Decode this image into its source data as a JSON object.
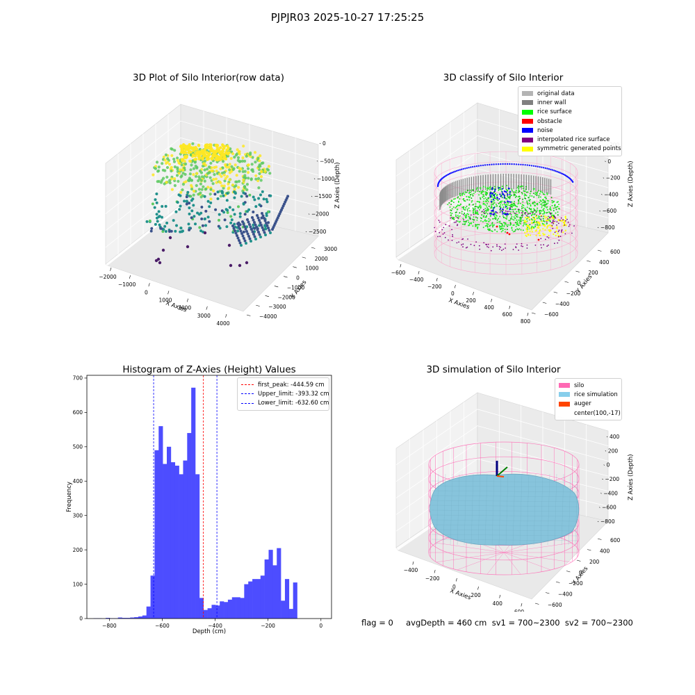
{
  "suptitle": "PJPJR03 2025-10-27 17:25:25",
  "chart_data": [
    {
      "type": "scatter3d",
      "title": "3D Plot of Silo Interior(row data)",
      "xlabel": "X Axies",
      "ylabel": "Y Axies",
      "zlabel": "Z Axies (Depth)",
      "xticks": [
        "−2000",
        "−1000",
        "0",
        "1000",
        "2000",
        "3000",
        "4000"
      ],
      "yticks": [
        "−4000",
        "−3000",
        "−2000",
        "−1000",
        "0",
        "1000",
        "2000",
        "3000"
      ],
      "zticks": [
        "0",
        "−500",
        "−1000",
        "−1500",
        "−2000",
        "−2500"
      ],
      "colormap": [
        "#440154",
        "#3b528b",
        "#21918c",
        "#5ec962",
        "#fde725"
      ]
    },
    {
      "type": "scatter3d",
      "title": "3D classify of Silo Interior",
      "xlabel": "X Axies",
      "ylabel": "Y Axies",
      "zlabel": "Z Axies (Depth)",
      "xticks": [
        "−600",
        "−400",
        "−200",
        "0",
        "200",
        "400",
        "600",
        "800"
      ],
      "yticks": [
        "−600",
        "−400",
        "−200",
        "0",
        "200",
        "400",
        "600"
      ],
      "zticks": [
        "200",
        "0",
        "−200",
        "−400",
        "−600",
        "−800"
      ],
      "legend": [
        {
          "label": "original data",
          "color": "#b4b4b4"
        },
        {
          "label": "inner wall",
          "color": "#808080"
        },
        {
          "label": "rice surface",
          "color": "#00ff00"
        },
        {
          "label": "obstacle",
          "color": "#ff0000"
        },
        {
          "label": "noise",
          "color": "#0000ff"
        },
        {
          "label": "interpolated rice surface",
          "color": "#800080"
        },
        {
          "label": "symmetric generated points",
          "color": "#ffff00"
        }
      ],
      "wall_color": "#ff9ec8"
    },
    {
      "type": "bar",
      "title": "Histogram of Z-Axies (Height) Values",
      "xlabel": "Depth (cm)",
      "ylabel": "Frequency",
      "xlim": [
        -885,
        40
      ],
      "ylim": [
        0,
        708
      ],
      "xticks": [
        {
          "v": -800,
          "label": "−800"
        },
        {
          "v": -600,
          "label": "−600"
        },
        {
          "v": -400,
          "label": "−400"
        },
        {
          "v": -200,
          "label": "−200"
        },
        {
          "v": 0,
          "label": "0"
        }
      ],
      "yticks": [
        {
          "v": 0,
          "label": "0"
        },
        {
          "v": 100,
          "label": "100"
        },
        {
          "v": 200,
          "label": "200"
        },
        {
          "v": 300,
          "label": "300"
        },
        {
          "v": 400,
          "label": "400"
        },
        {
          "v": 500,
          "label": "500"
        },
        {
          "v": 600,
          "label": "600"
        },
        {
          "v": 700,
          "label": "700"
        }
      ],
      "bar_color": "#4d4dff",
      "bin_start": -860,
      "bin_width": 15.4,
      "values": [
        1,
        1,
        0,
        2,
        1,
        1,
        3,
        2,
        2,
        3,
        4,
        6,
        9,
        35,
        125,
        490,
        560,
        450,
        500,
        455,
        445,
        420,
        460,
        540,
        672,
        420,
        60,
        25,
        30,
        40,
        38,
        50,
        48,
        55,
        62,
        62,
        60,
        100,
        108,
        115,
        115,
        125,
        172,
        200,
        155,
        205,
        52,
        115,
        28,
        105
      ],
      "vlines": [
        {
          "x": -444.59,
          "color": "#ff0000",
          "label": "first_peak: -444.59 cm"
        },
        {
          "x": -393.32,
          "color": "#0000ff",
          "label": "Upper_limit: -393.32 cm"
        },
        {
          "x": -632.6,
          "color": "#0000ff",
          "label": "Lower_limit: -632.60 cm"
        }
      ]
    },
    {
      "type": "surface3d",
      "title": "3D simulation of Silo Interior",
      "xlabel": "X Axies",
      "ylabel": "Y Axies",
      "zlabel": "Z Axies (Depth)",
      "xticks": [
        "−400",
        "−200",
        "0",
        "200",
        "400",
        "600"
      ],
      "yticks": [
        "−600",
        "−400",
        "−200",
        "0",
        "200",
        "400",
        "600"
      ],
      "zticks": [
        "400",
        "200",
        "0",
        "−200",
        "−400",
        "−600",
        "−800"
      ],
      "legend": [
        {
          "label": "silo",
          "color": "#ff69b4"
        },
        {
          "label": "rice simulation",
          "color": "#87ceeb"
        },
        {
          "label": "auger",
          "color": "#ff4500"
        },
        {
          "label": "center(100,-17)",
          "color": ""
        }
      ],
      "surface_color": "#87c4dc"
    }
  ],
  "status_line": "flag = 0     avgDepth = 460 cm  sv1 = 700~2300  sv2 = 700~2300"
}
